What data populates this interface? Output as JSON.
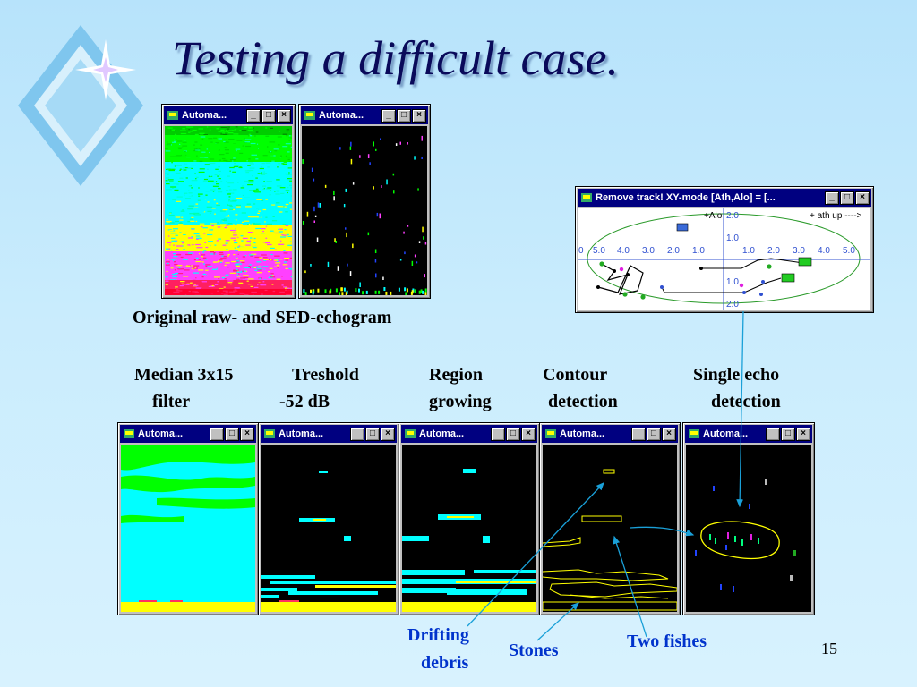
{
  "slide": {
    "title": "Testing a difficult case.",
    "page_number": "15"
  },
  "echograms_top": {
    "caption": "Original raw- and SED-echogram",
    "windows": [
      {
        "title": "Automa..."
      },
      {
        "title": "Automa..."
      }
    ]
  },
  "xy_window": {
    "title": "Remove track!   XY-mode [Ath,Alo] = [...",
    "labels": {
      "alo_plus": "+Alo",
      "ath_up": "+ ath up ---->",
      "y_ticks": [
        "2.0",
        "1.0",
        "1.0",
        "2.0"
      ],
      "x_ticks": [
        "0",
        "5.0",
        "4.0",
        "3.0",
        "2.0",
        "1.0",
        "1.0",
        "2.0",
        "3.0",
        "4.0",
        "5.0"
      ]
    }
  },
  "steps": {
    "labels": [
      {
        "line1": "Median 3x15",
        "line2": "filter"
      },
      {
        "line1": "Treshold",
        "line2": "-52 dB"
      },
      {
        "line1": "Region",
        "line2": "growing"
      },
      {
        "line1": "Contour",
        "line2": "detection"
      },
      {
        "line1": "Single echo",
        "line2": "detection"
      }
    ],
    "windows": [
      {
        "title": "Automa..."
      },
      {
        "title": "Automa..."
      },
      {
        "title": "Automa..."
      },
      {
        "title": "Automa..."
      },
      {
        "title": "Automa..."
      }
    ]
  },
  "annotations": {
    "drifting_line1": "Drifting",
    "drifting_line2": "debris",
    "stones": "Stones",
    "two_fishes": "Two fishes"
  },
  "colors": {
    "titlebar": "#000080",
    "window_gray": "#c0c0c0",
    "annotation_blue": "#0033cc",
    "arrow_cyan": "#1aa0d8"
  }
}
